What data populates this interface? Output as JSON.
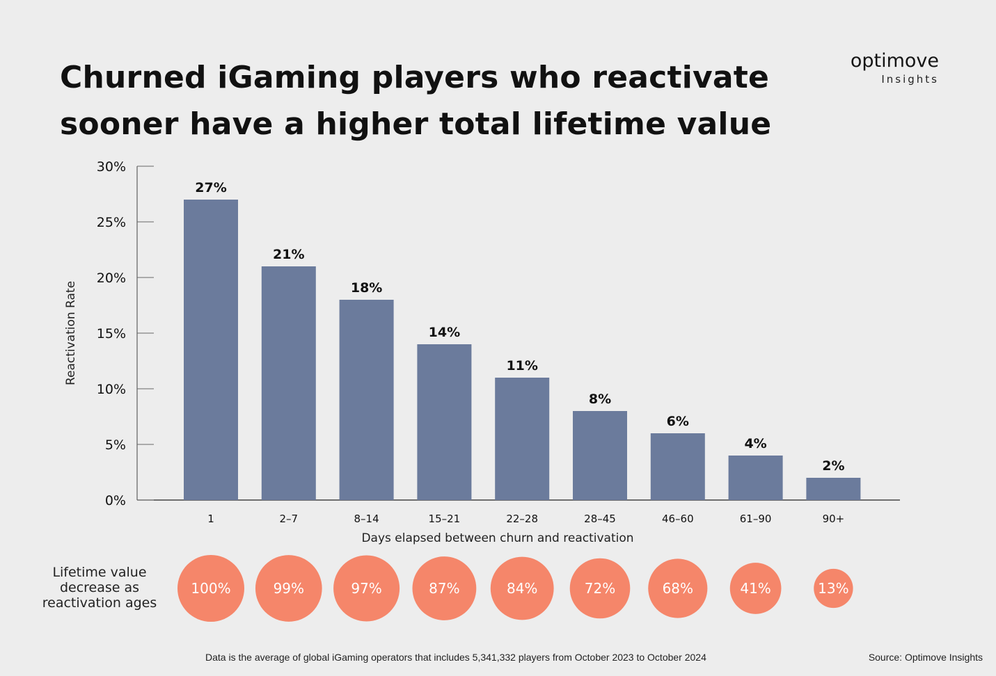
{
  "header": {
    "title": "Churned iGaming players who reactivate sooner have a higher total lifetime value",
    "brand_name": "optimove",
    "brand_sub": "Insights"
  },
  "chart_data": {
    "type": "bar",
    "title": "Churned iGaming players who reactivate sooner have a higher total lifetime value",
    "xlabel": "Days elapsed between churn and reactivation",
    "ylabel": "Reactivation Rate",
    "ylim": [
      0,
      30
    ],
    "yticks": [
      "0%",
      "5%",
      "10%",
      "15%",
      "20%",
      "25%",
      "30%"
    ],
    "ytick_values": [
      0,
      5,
      10,
      15,
      20,
      25,
      30
    ],
    "categories": [
      "1",
      "2–7",
      "8–14",
      "15–21",
      "22–28",
      "28–45",
      "46–60",
      "61–90",
      "90+"
    ],
    "values": [
      27,
      21,
      18,
      14,
      11,
      8,
      6,
      4,
      2
    ],
    "value_labels": [
      "27%",
      "21%",
      "18%",
      "14%",
      "11%",
      "8%",
      "6%",
      "4%",
      "2%"
    ],
    "bar_color": "#6b7b9c",
    "grid": false,
    "bubble_row": {
      "label": [
        "Lifetime value",
        "decrease as",
        "reactivation ages"
      ],
      "values": [
        100,
        99,
        97,
        87,
        84,
        72,
        68,
        41,
        13
      ],
      "value_labels": [
        "100%",
        "99%",
        "97%",
        "87%",
        "84%",
        "72%",
        "68%",
        "41%",
        "13%"
      ],
      "color": "#f5866a"
    }
  },
  "footer": {
    "note": "Data is the average of global iGaming operators that includes 5,341,332 players from October 2023 to October 2024",
    "source": "Source: Optimove Insights"
  }
}
